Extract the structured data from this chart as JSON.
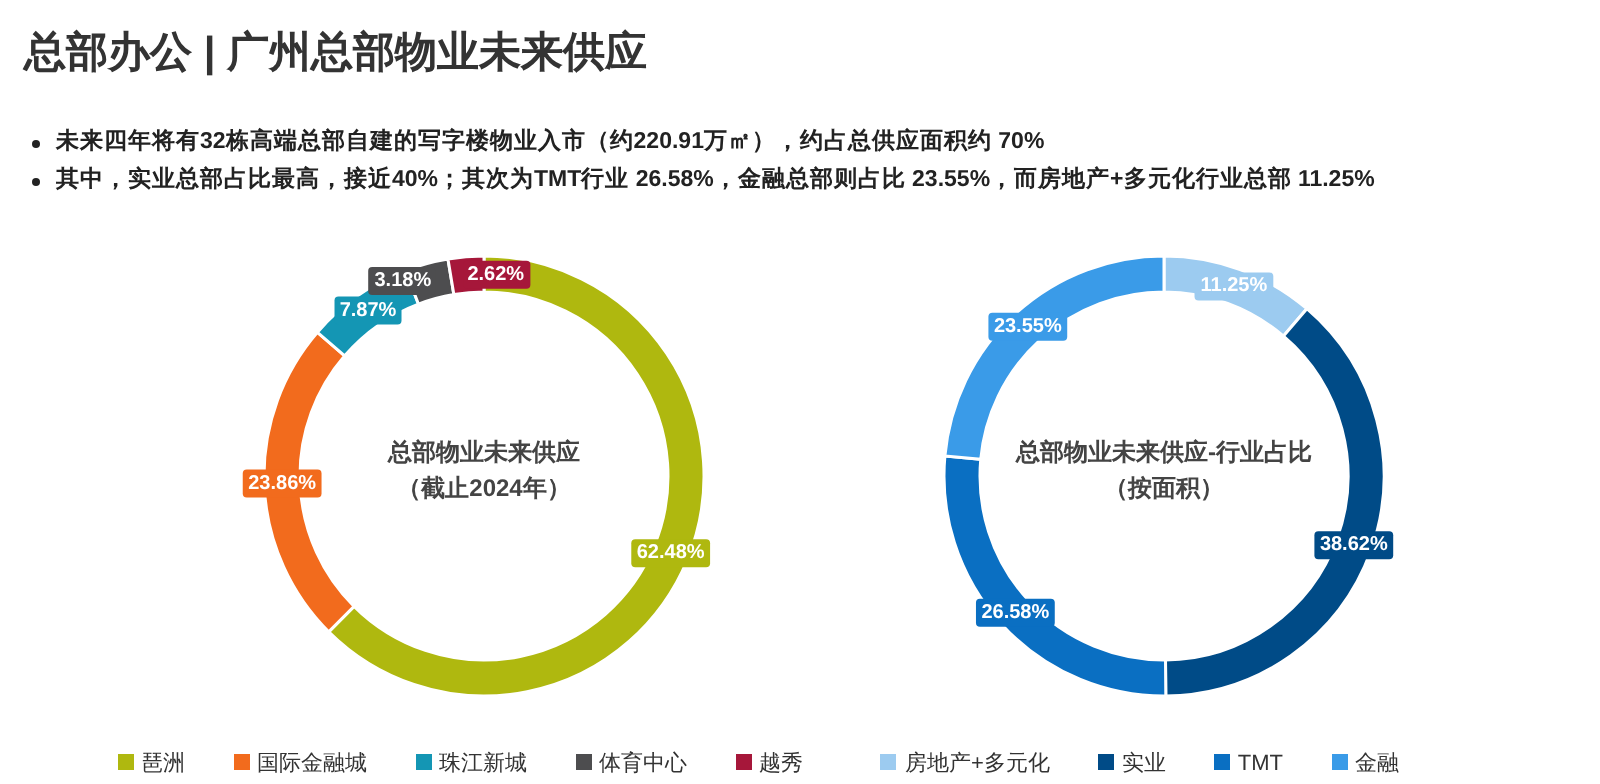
{
  "chart_data": [
    {
      "type": "donut",
      "title": "总部物业未来供应",
      "subtitle": "（截止2024年）",
      "annotations": [
        "总部办公 | 广州总部物业未来供应",
        "未来四年将有32栋高端总部自建的写字楼物业入市（约220.91万㎡），约占总供应面积约 70%",
        "其中，实业总部占比最高，接近40%；其次为TMT行业 26.58%，金融总部则占比 23.55%，而房地产+多元化行业总部 11.25%"
      ],
      "categories": [
        "琶洲",
        "国际金融城",
        "珠江新城",
        "体育中心",
        "越秀"
      ],
      "values": [
        62.48,
        23.86,
        7.87,
        3.18,
        2.62
      ],
      "colors": [
        "#afb80f",
        "#f26b1d",
        "#1496b4",
        "#4d4d4f",
        "#a6173a"
      ],
      "value_labels": [
        "62.48%",
        "23.86%",
        "7.87%",
        "3.18%",
        "2.62%"
      ],
      "legend": "bottom"
    },
    {
      "type": "donut",
      "title": "总部物业未来供应-行业占比",
      "subtitle": "（按面积）",
      "categories": [
        "房地产+多元化",
        "实业",
        "TMT",
        "金融"
      ],
      "values": [
        11.25,
        38.62,
        26.58,
        23.55
      ],
      "colors": [
        "#9ccbf0",
        "#004b87",
        "#0a6fc2",
        "#3a9be8"
      ],
      "value_labels": [
        "11.25%",
        "38.62%",
        "26.58%",
        "23.55%"
      ],
      "legend": "bottom"
    }
  ]
}
